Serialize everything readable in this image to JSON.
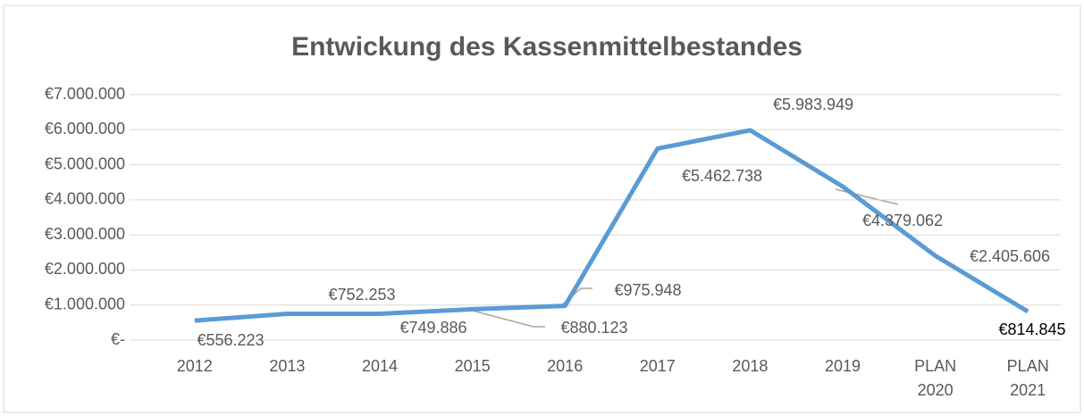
{
  "chart_data": {
    "type": "line",
    "title": "Entwickung des Kassenmittelbestandes",
    "categories": [
      "2012",
      "2013",
      "2014",
      "2015",
      "2016",
      "2017",
      "2018",
      "2019",
      "PLAN 2020",
      "PLAN 2021"
    ],
    "series": [
      {
        "color": "#5b9bd5",
        "values": [
          556223,
          752253,
          749886,
          880123,
          975948,
          5462738,
          5983949,
          4379062,
          2405606,
          814845
        ],
        "value_labels": [
          "€556.223",
          "€752.253",
          "€749.886",
          "€880.123",
          "€975.948",
          "€5.462.738",
          "€5.983.949",
          "€4.379.062",
          "€2.405.606",
          "€814.845"
        ]
      }
    ],
    "ylim": [
      0,
      7000000
    ],
    "yticks": [
      {
        "value": 0,
        "label": "€-"
      },
      {
        "value": 1000000,
        "label": "€1.000.000"
      },
      {
        "value": 2000000,
        "label": "€2.000.000"
      },
      {
        "value": 3000000,
        "label": "€3.000.000"
      },
      {
        "value": 4000000,
        "label": "€4.000.000"
      },
      {
        "value": 5000000,
        "label": "€5.000.000"
      },
      {
        "value": 6000000,
        "label": "€6.000.000"
      },
      {
        "value": 7000000,
        "label": "€7.000.000"
      }
    ],
    "grid": true
  }
}
